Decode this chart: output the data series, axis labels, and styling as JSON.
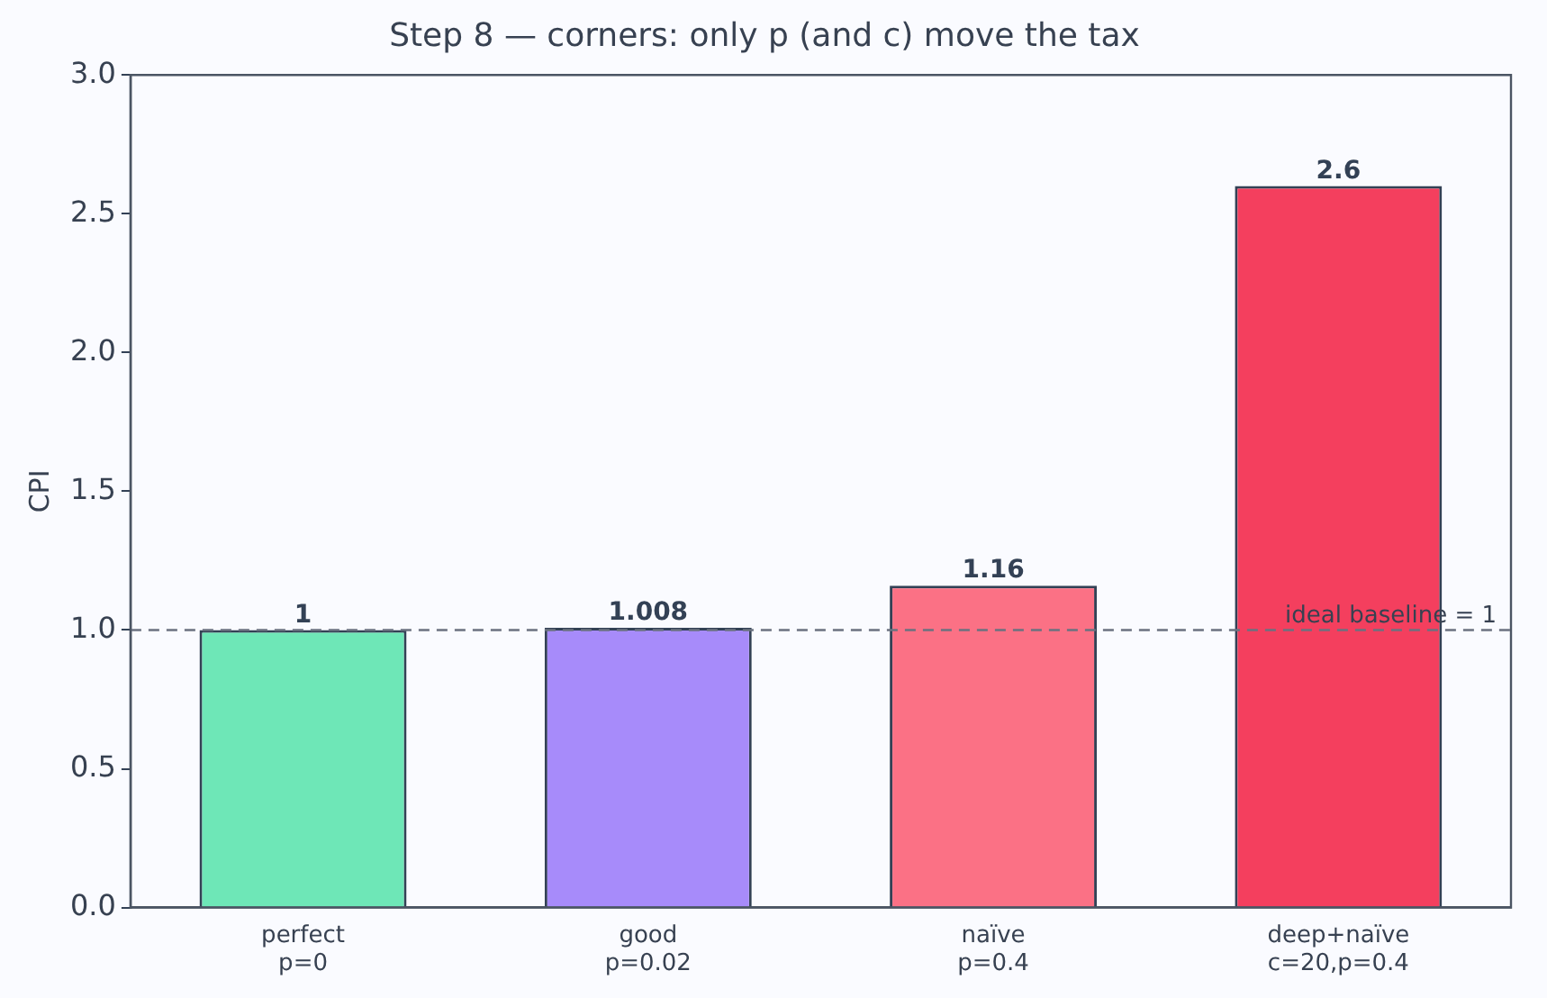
{
  "chart_data": {
    "type": "bar",
    "title": "Step 8 — corners: only p (and c) move the tax",
    "ylabel": "CPI",
    "categories": [
      "perfect\np=0",
      "good\np=0.02",
      "naïve\np=0.4",
      "deep+naïve\nc=20,p=0.4"
    ],
    "values": [
      1,
      1.008,
      1.16,
      2.6
    ],
    "colors": [
      "#6ee7b7",
      "#a78bfa",
      "#fb7185",
      "#f43f5e"
    ],
    "ylim": [
      0,
      3
    ],
    "yticks": [
      {
        "value": 0,
        "label": "0.0"
      },
      {
        "value": 0.5,
        "label": "0.5"
      },
      {
        "value": 1,
        "label": "1.0"
      },
      {
        "value": 1.5,
        "label": "1.5"
      },
      {
        "value": 2,
        "label": "2.0"
      },
      {
        "value": 2.5,
        "label": "2.5"
      },
      {
        "value": 3,
        "label": "3.0"
      }
    ],
    "ref_lines": [
      {
        "axis": "y",
        "value": 1,
        "label": "ideal baseline = 1",
        "color": "#6b7280",
        "line_style": "dashed"
      }
    ],
    "data_labels": true,
    "grid": false,
    "legend": false
  }
}
